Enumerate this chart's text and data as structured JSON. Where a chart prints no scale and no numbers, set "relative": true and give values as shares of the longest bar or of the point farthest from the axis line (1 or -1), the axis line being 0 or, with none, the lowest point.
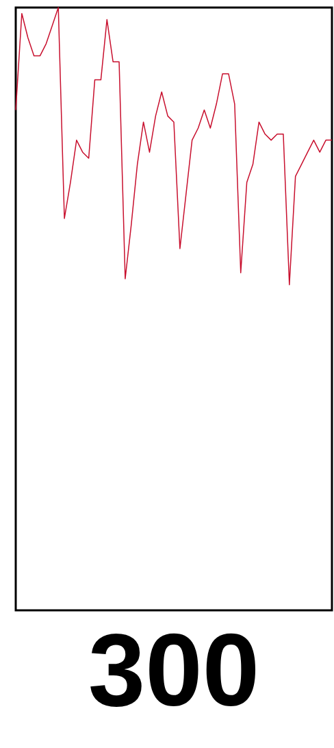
{
  "chart_data": {
    "type": "line",
    "relative": true,
    "color": "#c8102e",
    "categories": [
      null,
      null,
      null,
      null,
      null,
      null,
      null,
      null,
      null,
      null,
      null,
      null,
      null,
      null,
      null,
      null,
      null,
      null,
      null,
      null,
      null,
      null,
      null,
      null,
      null,
      null,
      null,
      null,
      null,
      null,
      null,
      null,
      null,
      null,
      null,
      null,
      null,
      null,
      null,
      null,
      null,
      null,
      null,
      null,
      null,
      null,
      null,
      null,
      null,
      null,
      null,
      null,
      null
    ],
    "values": [
      0.83,
      0.99,
      0.95,
      0.92,
      0.92,
      0.94,
      0.97,
      1.0,
      0.65,
      0.71,
      0.78,
      0.76,
      0.75,
      0.88,
      0.88,
      0.98,
      0.91,
      0.91,
      0.55,
      0.64,
      0.74,
      0.81,
      0.76,
      0.82,
      0.86,
      0.82,
      0.81,
      0.6,
      0.69,
      0.78,
      0.8,
      0.83,
      0.8,
      0.84,
      0.89,
      0.89,
      0.84,
      0.56,
      0.71,
      0.74,
      0.81,
      0.79,
      0.78,
      0.79,
      0.79,
      0.54,
      0.72,
      0.74,
      0.76,
      0.78,
      0.76,
      0.78,
      0.78
    ],
    "annotations": [
      "300"
    ]
  }
}
